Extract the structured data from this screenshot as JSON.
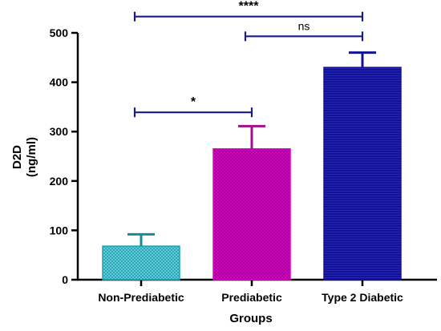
{
  "chart_data": {
    "type": "bar",
    "xlabel": "Groups",
    "ylabel_line1": "D2D",
    "ylabel_line2": "(ng/ml)",
    "ylim": [
      0,
      500
    ],
    "yticks": [
      0,
      100,
      200,
      300,
      400,
      500
    ],
    "categories": [
      "Non-Prediabetic",
      "Prediabetic",
      "Type 2 Diabetic"
    ],
    "values": [
      68,
      265,
      430
    ],
    "error_upper": [
      92,
      311,
      460
    ],
    "colors": {
      "Non-Prediabetic": "#1ba3b5",
      "Prediabetic": "#e000c8",
      "Type 2 Diabetic": "#13139a"
    },
    "error_colors": {
      "Non-Prediabetic": "#148a9a",
      "Prediabetic": "#a0108f",
      "Type 2 Diabetic": "#13139a"
    },
    "significance": [
      {
        "from": 0,
        "to": 1,
        "label": "*",
        "y": 339
      },
      {
        "from": 1,
        "to": 2,
        "label": "ns",
        "y": 493
      },
      {
        "from": 0,
        "to": 2,
        "label": "****",
        "y": 533
      }
    ],
    "bracket_color": "#1a1a8c",
    "grid": false,
    "legend": "none"
  }
}
